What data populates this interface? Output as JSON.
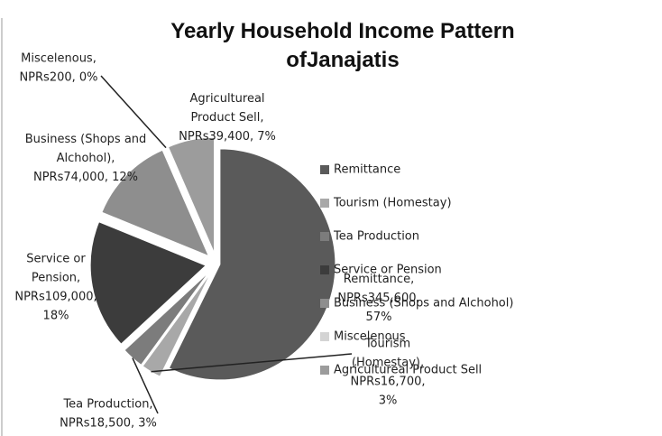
{
  "chart_data": {
    "type": "pie",
    "title": "Yearly Household Income Pattern of Janajatis",
    "categories": [
      "Remittance",
      "Tourism (Homestay)",
      "Tea Production",
      "Service or Pension",
      "Business (Shops and Alchohol)",
      "Miscelenous",
      "Agricultureal Product Sell"
    ],
    "values": [
      345600,
      16700,
      18500,
      109000,
      74000,
      200,
      39400
    ],
    "value_labels": [
      "Remittance, NPRs345,600, 57%",
      "Tourism (Homestay), NPRs16,700, 3%",
      "Tea Production, NPRs18,500, 3%",
      "Service or Pension, NPRs109,000, 18%",
      "Business (Shops and Alchohol), NPRs74,000, 12%",
      "Miscelenous, NPRs200, 0%",
      "Agricultureal Product Sell, NPRs39,400, 7%"
    ],
    "colors": [
      "#5a5a5a",
      "#a8a8a8",
      "#7c7c7c",
      "#3c3c3c",
      "#8e8e8e",
      "#d4d4d4",
      "#9c9c9c"
    ],
    "legend": "right"
  }
}
